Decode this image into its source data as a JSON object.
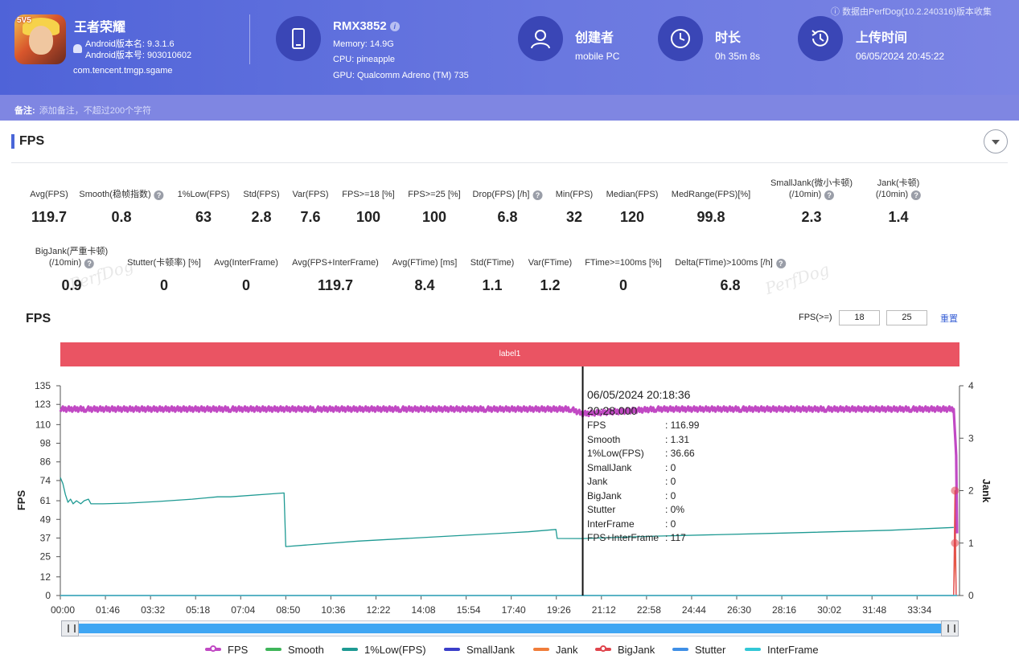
{
  "header": {
    "app_name": "王者荣耀",
    "android_version_name": "Android版本名: 9.3.1.6",
    "android_version_code": "Android版本号: 903010602",
    "package": "com.tencent.tmgp.sgame",
    "app_badge": "5V5",
    "device_name": "RMX3852",
    "memory": "Memory: 14.9G",
    "cpu": "CPU: pineapple",
    "gpu": "GPU: Qualcomm Adreno (TM) 735",
    "creator_label": "创建者",
    "creator_value": "mobile PC",
    "duration_label": "时长",
    "duration_value": "0h 35m 8s",
    "upload_label": "上传时间",
    "upload_value": "06/05/2024 20:45:22",
    "source_note": "数据由PerfDog(10.2.240316)版本收集",
    "note_label": "备注:",
    "note_placeholder": "添加备注，不超过200个字符"
  },
  "section": {
    "title": "FPS"
  },
  "metrics_row1": [
    {
      "label": "Avg(FPS)",
      "value": "119.7"
    },
    {
      "label": "Smooth(稳帧指数)",
      "value": "0.8",
      "help": true
    },
    {
      "label": "1%Low(FPS)",
      "value": "63"
    },
    {
      "label": "Std(FPS)",
      "value": "2.8"
    },
    {
      "label": "Var(FPS)",
      "value": "7.6"
    },
    {
      "label": "FPS>=18 [%]",
      "value": "100"
    },
    {
      "label": "FPS>=25 [%]",
      "value": "100"
    },
    {
      "label": "Drop(FPS) [/h]",
      "value": "6.8",
      "help": true
    },
    {
      "label": "Min(FPS)",
      "value": "32"
    },
    {
      "label": "Median(FPS)",
      "value": "120"
    },
    {
      "label": "MedRange(FPS)[%]",
      "value": "99.8"
    },
    {
      "label": "SmallJank(微小卡顿)",
      "label2": "(/10min)",
      "value": "2.3",
      "help": true
    },
    {
      "label": "Jank(卡顿)",
      "label2": "(/10min)",
      "value": "1.4",
      "help": true
    }
  ],
  "metrics_row2": [
    {
      "label": "BigJank(严重卡顿)",
      "label2": "(/10min)",
      "value": "0.9",
      "help": true
    },
    {
      "label": "Stutter(卡顿率) [%]",
      "value": "0"
    },
    {
      "label": "Avg(InterFrame)",
      "value": "0"
    },
    {
      "label": "Avg(FPS+InterFrame)",
      "value": "119.7"
    },
    {
      "label": "Avg(FTime) [ms]",
      "value": "8.4"
    },
    {
      "label": "Std(FTime)",
      "value": "1.1"
    },
    {
      "label": "Var(FTime)",
      "value": "1.2"
    },
    {
      "label": "FTime>=100ms [%]",
      "value": "0"
    },
    {
      "label": "Delta(FTime)>100ms [/h]",
      "value": "6.8",
      "help": true
    }
  ],
  "watermark": "PerfDog",
  "chart_controls": {
    "title": "FPS",
    "threshold_label": "FPS(>=)",
    "threshold_1": "18",
    "threshold_2": "25",
    "reset_label": "重置",
    "band_label": "label1"
  },
  "tooltip": {
    "datetime": "06/05/2024 20:18:36",
    "elapsed": "20:28.000",
    "rows": [
      {
        "k": "FPS",
        "v": ": 116.99"
      },
      {
        "k": "Smooth",
        "v": ": 1.31"
      },
      {
        "k": "1%Low(FPS)",
        "v": ": 36.66"
      },
      {
        "k": "SmallJank",
        "v": ": 0"
      },
      {
        "k": "Jank",
        "v": ": 0"
      },
      {
        "k": "BigJank",
        "v": ": 0"
      },
      {
        "k": "Stutter",
        "v": ": 0%"
      },
      {
        "k": "InterFrame",
        "v": ": 0"
      },
      {
        "k": "FPS+InterFrame",
        "v": ": 117"
      }
    ]
  },
  "chart_data": {
    "type": "line",
    "x_ticks": [
      "00:00",
      "01:46",
      "03:32",
      "05:18",
      "07:04",
      "08:50",
      "10:36",
      "12:22",
      "14:08",
      "15:54",
      "17:40",
      "19:26",
      "21:12",
      "22:58",
      "24:44",
      "26:30",
      "28:16",
      "30:02",
      "31:48",
      "33:34"
    ],
    "x_range_seconds": [
      0,
      2108
    ],
    "ylabel_left": "FPS",
    "ylabel_right": "Jank",
    "y_left_ticks": [
      "0",
      "12",
      "25",
      "37",
      "49",
      "61",
      "74",
      "86",
      "98",
      "110",
      "123",
      "135"
    ],
    "y_left_range": [
      0,
      135
    ],
    "y_right_ticks": [
      "0",
      "1",
      "2",
      "3",
      "4"
    ],
    "y_right_range": [
      0,
      4
    ],
    "cursor_seconds": 1228,
    "series": [
      {
        "name": "FPS",
        "color": "#c149c4",
        "axis": "left",
        "points": [
          [
            0,
            120
          ],
          [
            60,
            120
          ],
          [
            200,
            120
          ],
          [
            400,
            120
          ],
          [
            600,
            120
          ],
          [
            800,
            120
          ],
          [
            1000,
            120
          ],
          [
            1200,
            120
          ],
          [
            1228,
            117
          ],
          [
            1400,
            120
          ],
          [
            1600,
            120
          ],
          [
            1800,
            120
          ],
          [
            2000,
            120
          ],
          [
            2100,
            120
          ],
          [
            2106,
            90
          ],
          [
            2108,
            40
          ]
        ]
      },
      {
        "name": "Smooth",
        "color": "#3fb55a",
        "axis": "right",
        "points": [
          [
            0,
            0
          ],
          [
            2108,
            0
          ]
        ]
      },
      {
        "name": "1%Low(FPS)",
        "color": "#1e9a93",
        "axis": "left",
        "points": [
          [
            0,
            76
          ],
          [
            6,
            72
          ],
          [
            12,
            65
          ],
          [
            18,
            60
          ],
          [
            24,
            62
          ],
          [
            30,
            59
          ],
          [
            38,
            61
          ],
          [
            48,
            59
          ],
          [
            56,
            61
          ],
          [
            66,
            62
          ],
          [
            72,
            59
          ],
          [
            100,
            59
          ],
          [
            160,
            59.5
          ],
          [
            230,
            60.5
          ],
          [
            310,
            62
          ],
          [
            370,
            63.5
          ],
          [
            400,
            63.5
          ],
          [
            500,
            65.5
          ],
          [
            526,
            66
          ],
          [
            530,
            31.5
          ],
          [
            700,
            35
          ],
          [
            900,
            38
          ],
          [
            1100,
            41
          ],
          [
            1165,
            42.5
          ],
          [
            1168,
            36.7
          ],
          [
            1228,
            36.66
          ],
          [
            1400,
            38.2
          ],
          [
            1700,
            40.2
          ],
          [
            1950,
            42
          ],
          [
            2100,
            43.8
          ]
        ]
      },
      {
        "name": "SmallJank",
        "color": "#3b3fc9",
        "axis": "right",
        "points": [
          [
            0,
            0
          ],
          [
            2108,
            0
          ]
        ]
      },
      {
        "name": "Jank",
        "color": "#f07d3a",
        "axis": "right",
        "points": [
          [
            0,
            0
          ],
          [
            2100,
            0
          ],
          [
            2103,
            1
          ],
          [
            2106,
            0
          ]
        ]
      },
      {
        "name": "BigJank",
        "color": "#e0454d",
        "axis": "right",
        "points": [
          [
            0,
            0
          ],
          [
            2100,
            0
          ],
          [
            2103,
            2
          ],
          [
            2106,
            0
          ]
        ]
      },
      {
        "name": "Stutter",
        "color": "#3f8fe6",
        "axis": "right",
        "points": [
          [
            0,
            0
          ],
          [
            2108,
            0
          ]
        ]
      },
      {
        "name": "InterFrame",
        "color": "#32c7d6",
        "axis": "right",
        "points": [
          [
            0,
            0
          ],
          [
            2108,
            0
          ]
        ]
      }
    ]
  },
  "legend": [
    "FPS",
    "Smooth",
    "1%Low(FPS)",
    "SmallJank",
    "Jank",
    "BigJank",
    "Stutter",
    "InterFrame"
  ]
}
